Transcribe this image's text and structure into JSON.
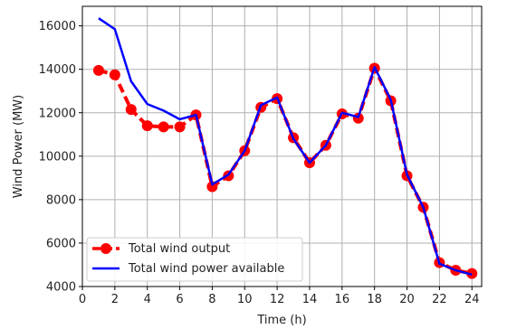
{
  "chart_data": {
    "type": "line",
    "title": "",
    "xlabel": "Time (h)",
    "ylabel": "Wind Power (MW)",
    "xlim": [
      0,
      24.6
    ],
    "ylim": [
      4000,
      16900
    ],
    "x_ticks": [
      0,
      2,
      4,
      6,
      8,
      10,
      12,
      14,
      16,
      18,
      20,
      22,
      24
    ],
    "y_ticks": [
      4000,
      6000,
      8000,
      10000,
      12000,
      14000,
      16000
    ],
    "grid": true,
    "legend_position": "lower-left",
    "x": [
      1,
      2,
      3,
      4,
      5,
      6,
      7,
      8,
      9,
      10,
      11,
      12,
      13,
      14,
      15,
      16,
      17,
      18,
      19,
      20,
      21,
      22,
      23,
      24
    ],
    "series": [
      {
        "name": "Total wind output",
        "style": "dashed line with circle markers",
        "color": "#ff0000",
        "values": [
          13950,
          13750,
          12150,
          11400,
          11350,
          11350,
          11900,
          8600,
          9100,
          10250,
          12250,
          12650,
          10850,
          9700,
          10500,
          11950,
          11750,
          14050,
          12550,
          9100,
          7650,
          5100,
          4750,
          4600
        ]
      },
      {
        "name": "Total wind power available",
        "style": "solid line",
        "color": "#0000ff",
        "values": [
          16350,
          15850,
          13450,
          12400,
          12100,
          11700,
          11900,
          8700,
          9150,
          10250,
          12350,
          12700,
          10800,
          9700,
          10500,
          12000,
          11800,
          14100,
          12600,
          9150,
          7650,
          5050,
          4750,
          4550
        ]
      }
    ]
  }
}
